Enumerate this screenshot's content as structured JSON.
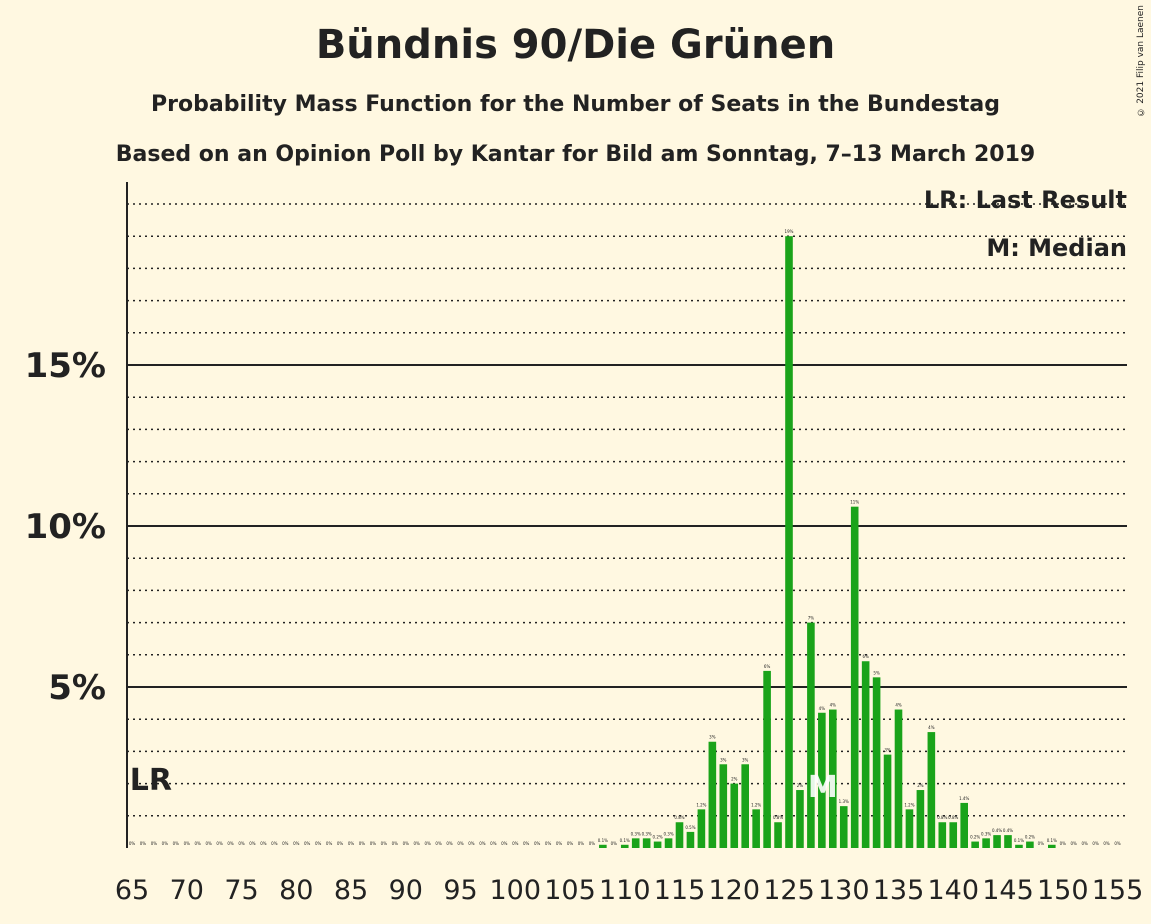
{
  "title": "Bündnis 90/Die Grünen",
  "subtitle1": "Probability Mass Function for the Number of Seats in the Bundestag",
  "subtitle2": "Based on an Opinion Poll by Kantar for Bild am Sonntag, 7–13 March 2019",
  "copyright": "© 2021 Filip van Laenen",
  "legend": {
    "lr": "LR: Last Result",
    "median": "M: Median"
  },
  "markers": {
    "last_result_label": "LR",
    "last_result_seat": 67,
    "median_label": "M",
    "median_seat": 128
  },
  "colors": {
    "bar": "#1aa31a",
    "background": "#fff8e1",
    "grid": "#222222"
  },
  "chart_data": {
    "type": "bar",
    "title": "Bündnis 90/Die Grünen",
    "xlabel": "",
    "ylabel": "",
    "ylim": [
      0,
      20.6
    ],
    "xlim": [
      65,
      155
    ],
    "major_y_ticks": [
      5,
      10,
      15
    ],
    "y_tick_labels": [
      "5%",
      "10%",
      "15%"
    ],
    "x_tick_labels": [
      "65",
      "70",
      "75",
      "80",
      "85",
      "90",
      "95",
      "100",
      "105",
      "110",
      "115",
      "120",
      "125",
      "130",
      "135",
      "140",
      "145",
      "150",
      "155"
    ],
    "grid": "major solid every 5%, minor dotted every 1%",
    "seats": [
      65,
      66,
      67,
      68,
      69,
      70,
      71,
      72,
      73,
      74,
      75,
      76,
      77,
      78,
      79,
      80,
      81,
      82,
      83,
      84,
      85,
      86,
      87,
      88,
      89,
      90,
      91,
      92,
      93,
      94,
      95,
      96,
      97,
      98,
      99,
      100,
      101,
      102,
      103,
      104,
      105,
      106,
      107,
      108,
      109,
      110,
      111,
      112,
      113,
      114,
      115,
      116,
      117,
      118,
      119,
      120,
      121,
      122,
      123,
      124,
      125,
      126,
      127,
      128,
      129,
      130,
      131,
      132,
      133,
      134,
      135,
      136,
      137,
      138,
      139,
      140,
      141,
      142,
      143,
      144,
      145,
      146,
      147,
      148,
      149,
      150,
      151,
      152,
      153,
      154,
      155
    ],
    "values": [
      0,
      0,
      0,
      0,
      0,
      0,
      0,
      0,
      0,
      0,
      0,
      0,
      0,
      0,
      0,
      0,
      0,
      0,
      0,
      0,
      0,
      0,
      0,
      0,
      0,
      0,
      0,
      0,
      0,
      0,
      0,
      0,
      0,
      0,
      0,
      0,
      0,
      0,
      0,
      0,
      0,
      0,
      0,
      0.1,
      0,
      0.1,
      0.3,
      0.3,
      0.2,
      0.3,
      0.8,
      0.5,
      1.2,
      3.3,
      2.6,
      2,
      2.6,
      1.2,
      5.5,
      0.8,
      19,
      1.8,
      7,
      4.2,
      4.3,
      1.3,
      10.6,
      5.8,
      5.3,
      2.9,
      4.3,
      1.2,
      1.8,
      3.6,
      0.8,
      0.8,
      1.4,
      0.2,
      0.3,
      0.4,
      0.4,
      0.1,
      0.2,
      0,
      0.1,
      0,
      0,
      0,
      0,
      0,
      0
    ],
    "value_labels": [
      "0%",
      "0%",
      "0%",
      "0%",
      "0%",
      "0%",
      "0%",
      "0%",
      "0%",
      "0%",
      "0%",
      "0%",
      "0%",
      "0%",
      "0%",
      "0%",
      "0%",
      "0%",
      "0%",
      "0%",
      "0%",
      "0%",
      "0%",
      "0%",
      "0%",
      "0%",
      "0%",
      "0%",
      "0%",
      "0%",
      "0%",
      "0%",
      "0%",
      "0%",
      "0%",
      "0%",
      "0%",
      "0%",
      "0%",
      "0%",
      "0%",
      "0%",
      "0%",
      "0.1%",
      "0%",
      "0.1%",
      "0.3%",
      "0.3%",
      "0.2%",
      "0.3%",
      "0.8%",
      "0.5%",
      "1.2%",
      "3%",
      "3%",
      "2%",
      "3%",
      "1.2%",
      "6%",
      "0.8%",
      "19%",
      "2%",
      "7%",
      "4%",
      "4%",
      "1.3%",
      "11%",
      "6%",
      "5%",
      "3%",
      "4%",
      "1.2%",
      "2%",
      "4%",
      "0.8%",
      "0.8%",
      "1.4%",
      "0.2%",
      "0.3%",
      "0.4%",
      "0.4%",
      "0.1%",
      "0.2%",
      "0%",
      "0.1%",
      "0%",
      "0%",
      "0%",
      "0%",
      "0%",
      "0%"
    ]
  }
}
